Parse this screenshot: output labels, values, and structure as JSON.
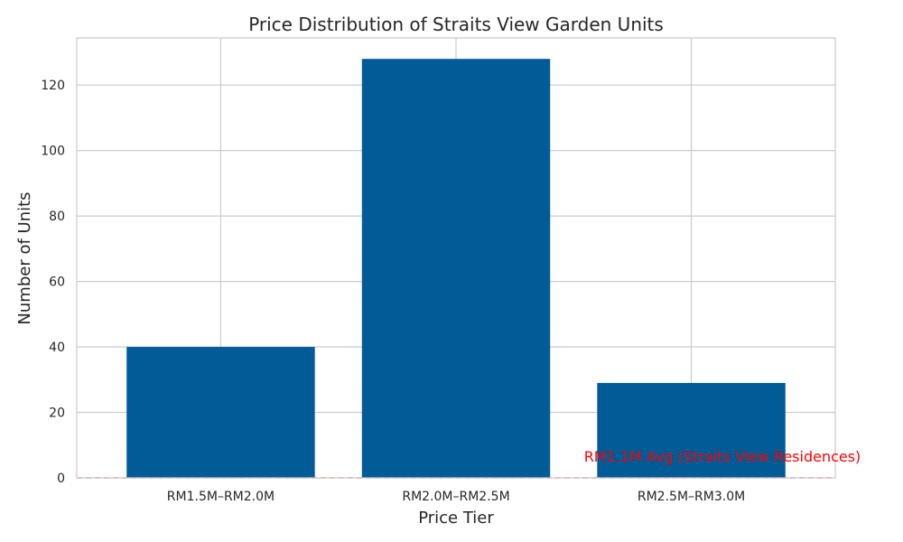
{
  "chart_data": {
    "type": "bar",
    "title": "Price Distribution of Straits View Garden Units",
    "xlabel": "Price Tier",
    "ylabel": "Number of Units",
    "categories": [
      "RM1.5M–RM2.0M",
      "RM2.0M–RM2.5M",
      "RM2.5M–RM3.0M"
    ],
    "values": [
      40,
      128,
      29
    ],
    "ylim": [
      0,
      134.4
    ],
    "yticks": [
      0,
      20,
      40,
      60,
      80,
      100,
      120
    ],
    "grid": true,
    "bar_color": "#005b96",
    "reference_line": {
      "value": 0,
      "label": "RM1.1M Avg (Straits View Residences)",
      "color": "#ff0000",
      "style": "dashed"
    }
  }
}
